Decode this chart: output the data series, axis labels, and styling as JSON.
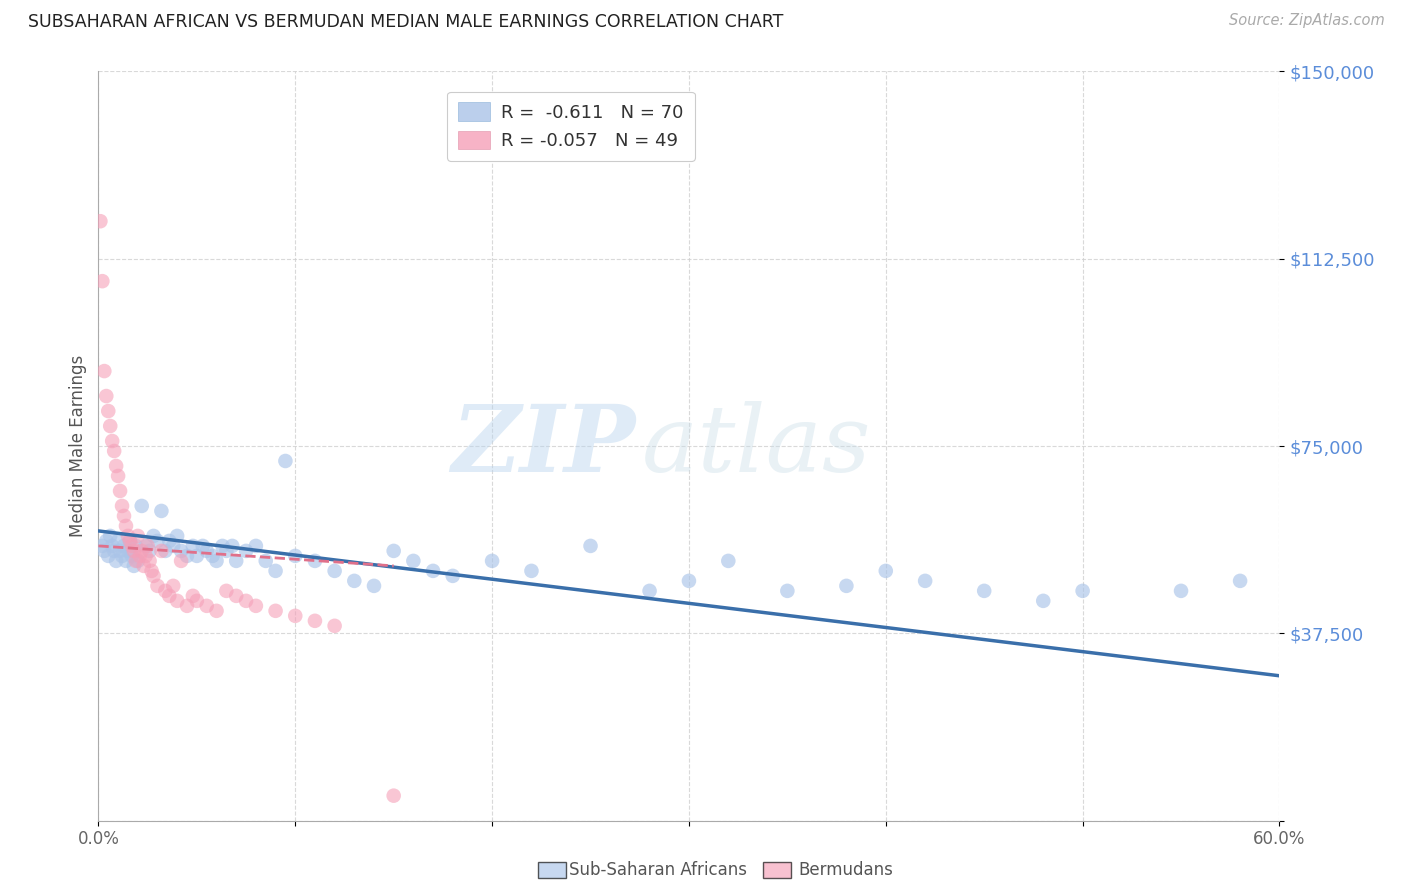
{
  "title": "SUBSAHARAN AFRICAN VS BERMUDAN MEDIAN MALE EARNINGS CORRELATION CHART",
  "source": "Source: ZipAtlas.com",
  "ylabel": "Median Male Earnings",
  "xlim": [
    0.0,
    0.6
  ],
  "ylim": [
    0,
    150000
  ],
  "yticks": [
    0,
    37500,
    75000,
    112500,
    150000
  ],
  "ytick_labels": [
    "",
    "$37,500",
    "$75,000",
    "$112,500",
    "$150,000"
  ],
  "xtick_positions": [
    0.0,
    0.1,
    0.2,
    0.3,
    0.4,
    0.5,
    0.6
  ],
  "xtick_labels": [
    "0.0%",
    "",
    "",
    "",
    "",
    "",
    "60.0%"
  ],
  "watermark_zip": "ZIP",
  "watermark_atlas": "atlas",
  "legend_blue_label": "R =  -0.611   N = 70",
  "legend_pink_label": "R = -0.057   N = 49",
  "legend_blue_label_r": "R = ",
  "legend_blue_r_val": " -0.611",
  "legend_blue_n": "N = ",
  "legend_blue_n_val": "70",
  "legend_pink_r_val": "-0.057",
  "legend_pink_n_val": "49",
  "blue_color": "#aac4e8",
  "pink_color": "#f5a0b8",
  "blue_line_color": "#3a6faa",
  "pink_line_color": "#e0708a",
  "grid_color": "#d0d0d0",
  "title_color": "#222222",
  "ytick_color": "#5b8dd9",
  "background_color": "#ffffff",
  "bottom_legend_blue": "Sub-Saharan Africans",
  "bottom_legend_pink": "Bermudans",
  "blue_scatter_x": [
    0.002,
    0.003,
    0.004,
    0.005,
    0.006,
    0.007,
    0.008,
    0.009,
    0.01,
    0.011,
    0.012,
    0.013,
    0.014,
    0.015,
    0.016,
    0.017,
    0.018,
    0.019,
    0.02,
    0.022,
    0.024,
    0.026,
    0.028,
    0.03,
    0.032,
    0.034,
    0.036,
    0.038,
    0.04,
    0.042,
    0.045,
    0.048,
    0.05,
    0.053,
    0.055,
    0.058,
    0.06,
    0.063,
    0.065,
    0.068,
    0.07,
    0.075,
    0.08,
    0.085,
    0.09,
    0.095,
    0.1,
    0.11,
    0.12,
    0.13,
    0.14,
    0.15,
    0.16,
    0.17,
    0.18,
    0.2,
    0.22,
    0.25,
    0.28,
    0.3,
    0.32,
    0.35,
    0.38,
    0.4,
    0.42,
    0.45,
    0.48,
    0.5,
    0.55,
    0.58
  ],
  "blue_scatter_y": [
    55000,
    54000,
    56000,
    53000,
    57000,
    55000,
    54000,
    52000,
    56000,
    54000,
    53000,
    55000,
    52000,
    54000,
    56000,
    53000,
    51000,
    55000,
    52000,
    63000,
    55000,
    54000,
    57000,
    56000,
    62000,
    54000,
    56000,
    55000,
    57000,
    54000,
    53000,
    55000,
    53000,
    55000,
    54000,
    53000,
    52000,
    55000,
    54000,
    55000,
    52000,
    54000,
    55000,
    52000,
    50000,
    72000,
    53000,
    52000,
    50000,
    48000,
    47000,
    54000,
    52000,
    50000,
    49000,
    52000,
    50000,
    55000,
    46000,
    48000,
    52000,
    46000,
    47000,
    50000,
    48000,
    46000,
    44000,
    46000,
    46000,
    48000
  ],
  "pink_scatter_x": [
    0.001,
    0.002,
    0.003,
    0.004,
    0.005,
    0.006,
    0.007,
    0.008,
    0.009,
    0.01,
    0.011,
    0.012,
    0.013,
    0.014,
    0.015,
    0.016,
    0.017,
    0.018,
    0.019,
    0.02,
    0.021,
    0.022,
    0.023,
    0.024,
    0.025,
    0.026,
    0.027,
    0.028,
    0.03,
    0.032,
    0.034,
    0.036,
    0.038,
    0.04,
    0.042,
    0.045,
    0.048,
    0.05,
    0.055,
    0.06,
    0.065,
    0.07,
    0.075,
    0.08,
    0.09,
    0.1,
    0.11,
    0.12,
    0.15
  ],
  "pink_scatter_y": [
    120000,
    108000,
    90000,
    85000,
    82000,
    79000,
    76000,
    74000,
    71000,
    69000,
    66000,
    63000,
    61000,
    59000,
    57000,
    56000,
    55000,
    54000,
    52000,
    57000,
    53000,
    54000,
    51000,
    53000,
    55000,
    52000,
    50000,
    49000,
    47000,
    54000,
    46000,
    45000,
    47000,
    44000,
    52000,
    43000,
    45000,
    44000,
    43000,
    42000,
    46000,
    45000,
    44000,
    43000,
    42000,
    41000,
    40000,
    39000,
    5000
  ],
  "blue_trend_x": [
    0.0,
    0.6
  ],
  "blue_trend_y": [
    58000,
    29000
  ],
  "pink_trend_x": [
    0.0,
    0.15
  ],
  "pink_trend_y": [
    55000,
    51000
  ]
}
